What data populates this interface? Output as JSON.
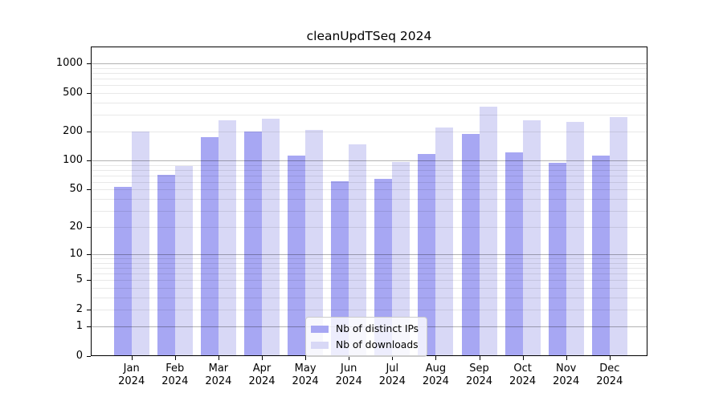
{
  "chart_data": {
    "type": "bar",
    "title": "cleanUpdTSeq 2024",
    "categories": [
      "Jan 2024",
      "Feb 2024",
      "Mar 2024",
      "Apr 2024",
      "May 2024",
      "Jun 2024",
      "Jul 2024",
      "Aug 2024",
      "Sep 2024",
      "Oct 2024",
      "Nov 2024",
      "Dec 2024"
    ],
    "months": [
      "Jan",
      "Feb",
      "Mar",
      "Apr",
      "May",
      "Jun",
      "Jul",
      "Aug",
      "Sep",
      "Oct",
      "Nov",
      "Dec"
    ],
    "year": "2024",
    "series": [
      {
        "name": "Nb of distinct IPs",
        "color": "#a7a7f3",
        "values": [
          53,
          72,
          175,
          200,
          112,
          61,
          65,
          118,
          190,
          122,
          95,
          113
        ]
      },
      {
        "name": "Nb of downloads",
        "color": "#d8d8f6",
        "values": [
          200,
          89,
          264,
          272,
          208,
          147,
          97,
          220,
          358,
          260,
          251,
          283
        ]
      }
    ],
    "xlabel": "",
    "ylabel": "",
    "y_ticks": [
      0,
      1,
      2,
      5,
      10,
      20,
      50,
      100,
      200,
      500,
      1000
    ],
    "y_scale": "log10(value+1)",
    "ylim": [
      0,
      1480
    ],
    "grid": true,
    "legend_position": "inside-bottom-center"
  },
  "colors": {
    "bar_distinct_ips": "#a7a7f3",
    "bar_downloads": "#d8d8f6",
    "gridline_major": "#b3b3b3",
    "gridline_minor": "#e8e8e8",
    "axis": "#000000",
    "background": "#ffffff",
    "legend_border": "#cccccc"
  }
}
